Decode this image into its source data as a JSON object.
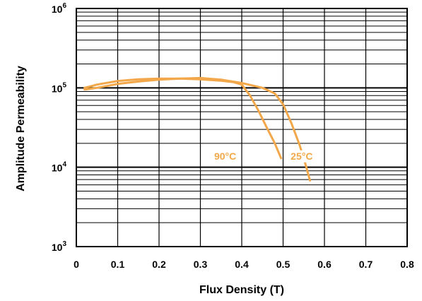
{
  "chart_data": {
    "type": "line",
    "xlabel": "Flux Density (T)",
    "ylabel": "Amplitude Permeability",
    "xlim": [
      0,
      0.8
    ],
    "ylim": [
      1000,
      1000000
    ],
    "yscale": "log",
    "grid": true,
    "x_ticks": [
      {
        "value": 0,
        "label": "0"
      },
      {
        "value": 0.1,
        "label": "0.1"
      },
      {
        "value": 0.2,
        "label": "0.2"
      },
      {
        "value": 0.3,
        "label": "0.3"
      },
      {
        "value": 0.4,
        "label": "0.4"
      },
      {
        "value": 0.5,
        "label": "0.5"
      },
      {
        "value": 0.6,
        "label": "0.6"
      },
      {
        "value": 0.7,
        "label": "0.7"
      },
      {
        "value": 0.8,
        "label": "0.8"
      }
    ],
    "y_ticks": [
      {
        "value": 1000,
        "base": "10",
        "exp": "3"
      },
      {
        "value": 10000,
        "base": "10",
        "exp": "4"
      },
      {
        "value": 100000,
        "base": "10",
        "exp": "5"
      },
      {
        "value": 1000000,
        "base": "10",
        "exp": "6"
      }
    ],
    "series": [
      {
        "name": "25°C",
        "color": "#F2A84A",
        "points": [
          [
            0.02,
            95000
          ],
          [
            0.05,
            100000
          ],
          [
            0.1,
            112000
          ],
          [
            0.15,
            120000
          ],
          [
            0.2,
            127000
          ],
          [
            0.25,
            131000
          ],
          [
            0.3,
            133000
          ],
          [
            0.35,
            127000
          ],
          [
            0.4,
            115000
          ],
          [
            0.45,
            100000
          ],
          [
            0.48,
            85000
          ],
          [
            0.5,
            62000
          ],
          [
            0.52,
            36000
          ],
          [
            0.54,
            19000
          ],
          [
            0.555,
            10500
          ],
          [
            0.565,
            6800
          ]
        ],
        "label_at": [
          0.545,
          12500
        ]
      },
      {
        "name": "90°C",
        "color": "#F2A84A",
        "points": [
          [
            0.02,
            100000
          ],
          [
            0.05,
            110000
          ],
          [
            0.1,
            122000
          ],
          [
            0.15,
            128000
          ],
          [
            0.2,
            131000
          ],
          [
            0.25,
            131000
          ],
          [
            0.3,
            128000
          ],
          [
            0.35,
            123000
          ],
          [
            0.38,
            118000
          ],
          [
            0.4,
            110000
          ],
          [
            0.42,
            80000
          ],
          [
            0.44,
            52000
          ],
          [
            0.46,
            32000
          ],
          [
            0.48,
            20000
          ],
          [
            0.495,
            13000
          ]
        ],
        "label_at": [
          0.36,
          12500
        ]
      }
    ]
  }
}
